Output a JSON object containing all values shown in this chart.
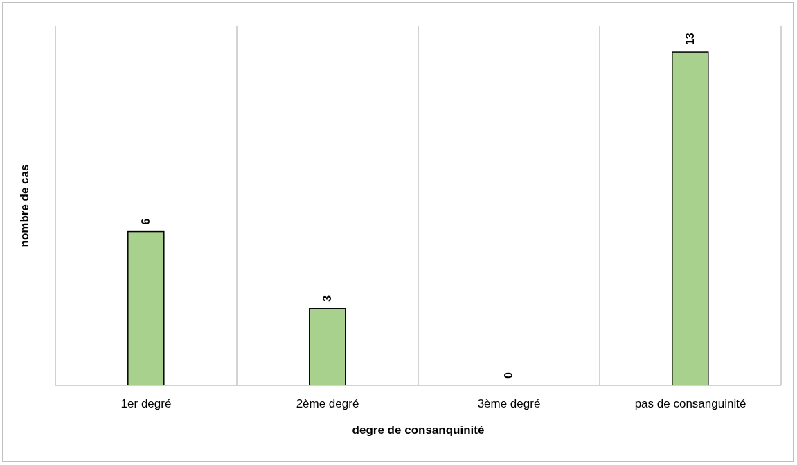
{
  "chart_data": {
    "type": "bar",
    "xlabel": "degre de consanquinité",
    "ylabel": "nombre de cas",
    "categories": [
      "1er degré",
      "2ème degré",
      "3ème degré",
      "pas de consanguinité"
    ],
    "values": [
      6,
      3,
      0,
      13
    ],
    "color": "#a9d18e",
    "ylim": [
      0,
      14
    ],
    "tick_labels": "x",
    "grid": "x",
    "data_labels": true
  }
}
